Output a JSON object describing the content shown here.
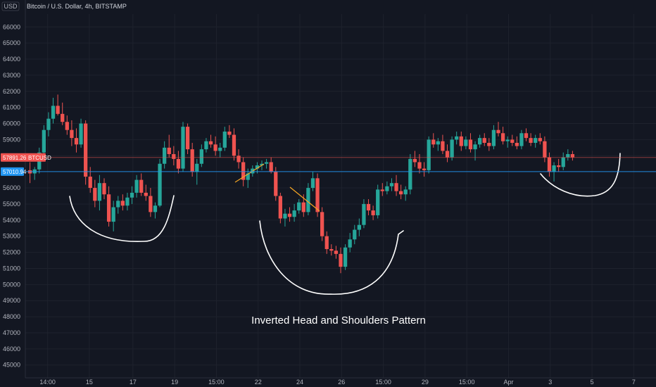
{
  "chart_data": {
    "type": "candlestick",
    "title": "Bitcoin / U.S. Dollar, 4h, BITSTAMP",
    "currency": "USD",
    "ylim": [
      44200,
      66800
    ],
    "y_ticks": [
      45000,
      46000,
      47000,
      48000,
      49000,
      50000,
      51000,
      52000,
      53000,
      54000,
      55000,
      56000,
      57000,
      58000,
      59000,
      60000,
      61000,
      62000,
      63000,
      64000,
      65000,
      66000
    ],
    "x_tick_labels": [
      "14:00",
      "15",
      "17",
      "19",
      "15:00",
      "22",
      "24",
      "26",
      "15:00",
      "29",
      "15:00",
      "Apr",
      "3",
      "5",
      "7"
    ],
    "x_ticks": [
      1.4,
      5.9,
      10.6,
      15.1,
      19.6,
      24.1,
      28.6,
      33.1,
      37.6,
      42.1,
      46.6,
      51.1,
      55.6,
      60.1,
      64.6
    ],
    "x_range": [
      -1.0,
      67.0
    ],
    "candles": [
      [
        -0.5,
        57100,
        57600,
        56300,
        56900
      ],
      [
        0,
        56900,
        57300,
        56500,
        57150
      ],
      [
        0.5,
        57150,
        58500,
        56900,
        58200
      ],
      [
        1,
        58200,
        59900,
        58000,
        59600
      ],
      [
        1.5,
        59600,
        60700,
        59200,
        60300
      ],
      [
        2,
        60300,
        61600,
        60000,
        61100
      ],
      [
        2.5,
        61100,
        61800,
        60500,
        60600
      ],
      [
        3,
        60600,
        61300,
        59900,
        60100
      ],
      [
        3.5,
        60100,
        60500,
        59300,
        59600
      ],
      [
        4,
        59600,
        60200,
        58600,
        59100
      ],
      [
        4.5,
        59100,
        59700,
        58200,
        58700
      ],
      [
        5,
        58700,
        60300,
        58500,
        60000
      ],
      [
        5.5,
        60000,
        60200,
        56200,
        56700
      ],
      [
        6,
        56700,
        57300,
        55700,
        56000
      ],
      [
        6.5,
        56000,
        56500,
        54800,
        55200
      ],
      [
        7,
        55200,
        56800,
        54600,
        56300
      ],
      [
        7.5,
        56300,
        56600,
        55300,
        55600
      ],
      [
        8,
        55600,
        56100,
        53600,
        53900
      ],
      [
        8.5,
        53900,
        55200,
        53300,
        54800
      ],
      [
        9,
        54800,
        55500,
        54400,
        55200
      ],
      [
        9.5,
        55200,
        55600,
        54600,
        54900
      ],
      [
        10,
        54900,
        55700,
        54600,
        55400
      ],
      [
        10.5,
        55400,
        56100,
        55000,
        55700
      ],
      [
        11,
        55700,
        56800,
        55400,
        56500
      ],
      [
        11.5,
        56500,
        56900,
        55500,
        55700
      ],
      [
        12,
        55700,
        56200,
        55200,
        55500
      ],
      [
        12.5,
        55500,
        56000,
        54200,
        54500
      ],
      [
        13,
        54500,
        55100,
        54100,
        54900
      ],
      [
        13.5,
        54900,
        57800,
        54800,
        57500
      ],
      [
        14,
        57500,
        58900,
        57200,
        58500
      ],
      [
        14.5,
        58500,
        59300,
        57900,
        58100
      ],
      [
        15,
        58100,
        58600,
        57400,
        57800
      ],
      [
        15.5,
        57800,
        58300,
        56900,
        57200
      ],
      [
        16,
        57200,
        60100,
        57000,
        59800
      ],
      [
        16.5,
        59800,
        60000,
        58100,
        58400
      ],
      [
        17,
        58400,
        58800,
        56700,
        57000
      ],
      [
        17.5,
        57000,
        57800,
        56200,
        57500
      ],
      [
        18,
        57500,
        58700,
        57300,
        58400
      ],
      [
        18.5,
        58400,
        59100,
        58200,
        58900
      ],
      [
        19,
        58900,
        59300,
        58500,
        58700
      ],
      [
        19.5,
        58700,
        59200,
        58000,
        58300
      ],
      [
        20,
        58300,
        58800,
        57900,
        58500
      ],
      [
        20.5,
        58500,
        59800,
        58300,
        59500
      ],
      [
        21,
        59500,
        59900,
        59100,
        59300
      ],
      [
        21.5,
        59300,
        59700,
        57700,
        58000
      ],
      [
        22,
        58000,
        58400,
        57200,
        57600
      ],
      [
        22.5,
        57600,
        57900,
        56100,
        56500
      ],
      [
        23,
        56500,
        57200,
        56000,
        56900
      ],
      [
        23.5,
        56900,
        57400,
        56700,
        57200
      ],
      [
        24,
        57200,
        57600,
        56900,
        57400
      ],
      [
        24.5,
        57400,
        57700,
        57100,
        57500
      ],
      [
        25,
        57500,
        57800,
        57200,
        57600
      ],
      [
        25.5,
        57600,
        57900,
        56900,
        57000
      ],
      [
        26,
        57000,
        57300,
        55200,
        55500
      ],
      [
        26.5,
        55500,
        55700,
        53800,
        54100
      ],
      [
        27,
        54100,
        54700,
        53600,
        54400
      ],
      [
        27.5,
        54400,
        54800,
        53900,
        54200
      ],
      [
        28,
        54200,
        55000,
        53900,
        54600
      ],
      [
        28.5,
        54600,
        55300,
        54400,
        55100
      ],
      [
        29,
        55100,
        55600,
        54200,
        54500
      ],
      [
        29.5,
        54500,
        56300,
        54300,
        56000
      ],
      [
        30,
        56000,
        57000,
        55800,
        56600
      ],
      [
        30.5,
        56600,
        56900,
        54200,
        54500
      ],
      [
        31,
        54500,
        54800,
        52700,
        53000
      ],
      [
        31.5,
        53000,
        53300,
        51900,
        52200
      ],
      [
        32,
        52200,
        52500,
        51800,
        52100
      ],
      [
        32.5,
        52100,
        52400,
        51600,
        51900
      ],
      [
        33,
        51900,
        52300,
        50700,
        51100
      ],
      [
        33.5,
        51100,
        52500,
        50900,
        52300
      ],
      [
        34,
        52300,
        53200,
        52000,
        52800
      ],
      [
        34.5,
        52800,
        53700,
        52500,
        53400
      ],
      [
        35,
        53400,
        54100,
        53000,
        53700
      ],
      [
        35.5,
        53700,
        55300,
        53500,
        55000
      ],
      [
        36,
        55000,
        55300,
        54300,
        54600
      ],
      [
        36.5,
        54600,
        54900,
        54000,
        54300
      ],
      [
        37,
        54300,
        56200,
        54100,
        55900
      ],
      [
        37.5,
        55900,
        56300,
        55500,
        55800
      ],
      [
        38,
        55800,
        56400,
        55600,
        56100
      ],
      [
        38.5,
        56100,
        56600,
        55800,
        56300
      ],
      [
        39,
        56300,
        56800,
        55500,
        55800
      ],
      [
        39.5,
        55800,
        56200,
        55300,
        55600
      ],
      [
        40,
        55600,
        56100,
        55200,
        55900
      ],
      [
        40.5,
        55900,
        58100,
        55600,
        57800
      ],
      [
        41,
        57800,
        58300,
        57300,
        57600
      ],
      [
        41.5,
        57600,
        58100,
        56900,
        57200
      ],
      [
        42,
        57200,
        57600,
        56700,
        57100
      ],
      [
        42.5,
        57100,
        59200,
        56900,
        59000
      ],
      [
        43,
        59000,
        59400,
        58500,
        58700
      ],
      [
        43.5,
        58700,
        59100,
        58300,
        58900
      ],
      [
        44,
        58900,
        59300,
        58100,
        58300
      ],
      [
        44.5,
        58300,
        58700,
        57600,
        57900
      ],
      [
        45,
        57900,
        59200,
        57700,
        59000
      ],
      [
        45.5,
        59000,
        59500,
        58700,
        59200
      ],
      [
        46,
        59200,
        59500,
        58300,
        58600
      ],
      [
        46.5,
        58600,
        59200,
        58400,
        59000
      ],
      [
        47,
        59000,
        59400,
        58200,
        58400
      ],
      [
        47.5,
        58400,
        58900,
        57700,
        58700
      ],
      [
        48,
        58700,
        59300,
        58500,
        59100
      ],
      [
        48.5,
        59100,
        59400,
        58600,
        58800
      ],
      [
        49,
        58800,
        59100,
        58300,
        58600
      ],
      [
        49.5,
        58600,
        59900,
        58400,
        59600
      ],
      [
        50,
        59600,
        60100,
        59200,
        59400
      ],
      [
        50.5,
        59400,
        59800,
        58700,
        58900
      ],
      [
        51,
        58900,
        59200,
        58500,
        59000
      ],
      [
        51.5,
        59000,
        59300,
        58600,
        58800
      ],
      [
        52,
        58800,
        59200,
        58400,
        58600
      ],
      [
        52.5,
        58600,
        59600,
        58400,
        59400
      ],
      [
        53,
        59400,
        59700,
        58900,
        59100
      ],
      [
        53.5,
        59100,
        59400,
        58600,
        58800
      ],
      [
        54,
        58800,
        59300,
        58500,
        59100
      ],
      [
        54.5,
        59100,
        59400,
        58700,
        58900
      ],
      [
        55,
        58900,
        59200,
        57600,
        57900
      ],
      [
        55.5,
        57900,
        58200,
        56700,
        57000
      ],
      [
        56,
        57000,
        57600,
        56400,
        57400
      ],
      [
        56.5,
        57400,
        57800,
        57000,
        57300
      ],
      [
        57,
        57300,
        58200,
        57100,
        57900
      ],
      [
        57.5,
        57900,
        58400,
        57700,
        58100
      ],
      [
        58,
        58100,
        58300,
        57700,
        57900
      ]
    ],
    "price_lines": [
      {
        "value": 57891.26,
        "label": "57891.26",
        "symbol": "BTCUSD",
        "color": "#ef5350"
      },
      {
        "value": 57010.94,
        "label": "57010.94",
        "color": "#2196f3"
      }
    ],
    "annotations": [
      {
        "text": "Inverted Head and Shoulders Pattern",
        "x": 31.5,
        "y": 47500
      }
    ],
    "colors": {
      "up": "#26a69a",
      "down": "#ef5350",
      "background": "#131722",
      "grid": "#1e222d",
      "text": "#b2b5be",
      "drawing": "#ffffff",
      "trend": "#f5a623"
    }
  }
}
